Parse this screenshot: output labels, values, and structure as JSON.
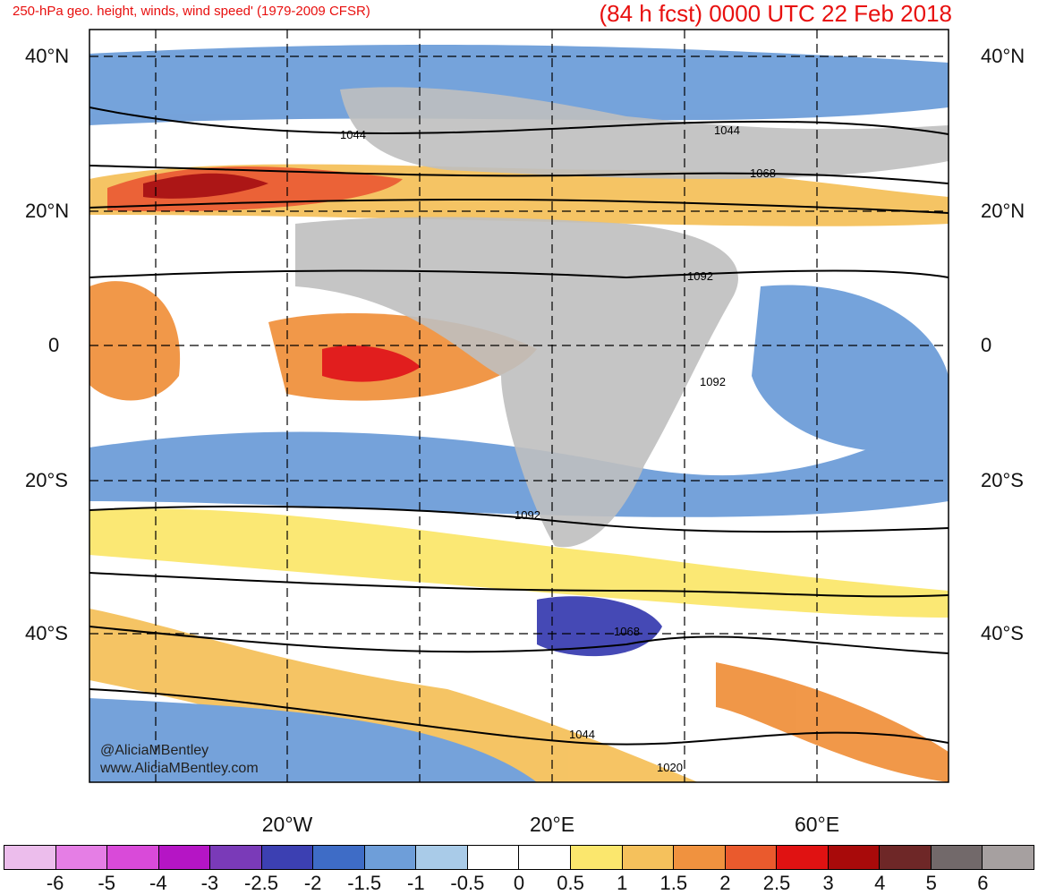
{
  "header": {
    "title_left": "250-hPa geo. height, winds, wind speed' (1979-2009 CFSR)",
    "title_right": "(84 h fcst) 0000 UTC 22 Feb 2018"
  },
  "axes": {
    "lat_labels": [
      "40°N",
      "20°N",
      "0",
      "20°S",
      "40°S"
    ],
    "lon_labels": [
      "20°W",
      "20°E",
      "60°E"
    ]
  },
  "contour_labels": [
    "1044",
    "1044",
    "1068",
    "1092",
    "1092",
    "1092",
    "1068",
    "1044",
    "1020"
  ],
  "credits": [
    "@AliciaMBentley",
    "www.AliciaMBentley.com"
  ],
  "colorbar": {
    "labels": [
      "-6",
      "-5",
      "-4",
      "-3",
      "-2.5",
      "-2",
      "-1.5",
      "-1",
      "-0.5",
      "0",
      "0.5",
      "1",
      "1.5",
      "2",
      "2.5",
      "3",
      "4",
      "5",
      "6"
    ],
    "colors": [
      "#ecbdec",
      "#e57ee5",
      "#d94ad9",
      "#b515c5",
      "#7a3ab8",
      "#3c40b2",
      "#3e6cc6",
      "#6e9ed9",
      "#a9cbe8",
      "#ffffff",
      "#ffffff",
      "#fbe76d",
      "#f5c15c",
      "#f0923f",
      "#ea5a2d",
      "#e01212",
      "#a80a0a",
      "#6e2727",
      "#72696a",
      "#a6a0a0"
    ],
    "land_color": "#bfbfbf"
  }
}
